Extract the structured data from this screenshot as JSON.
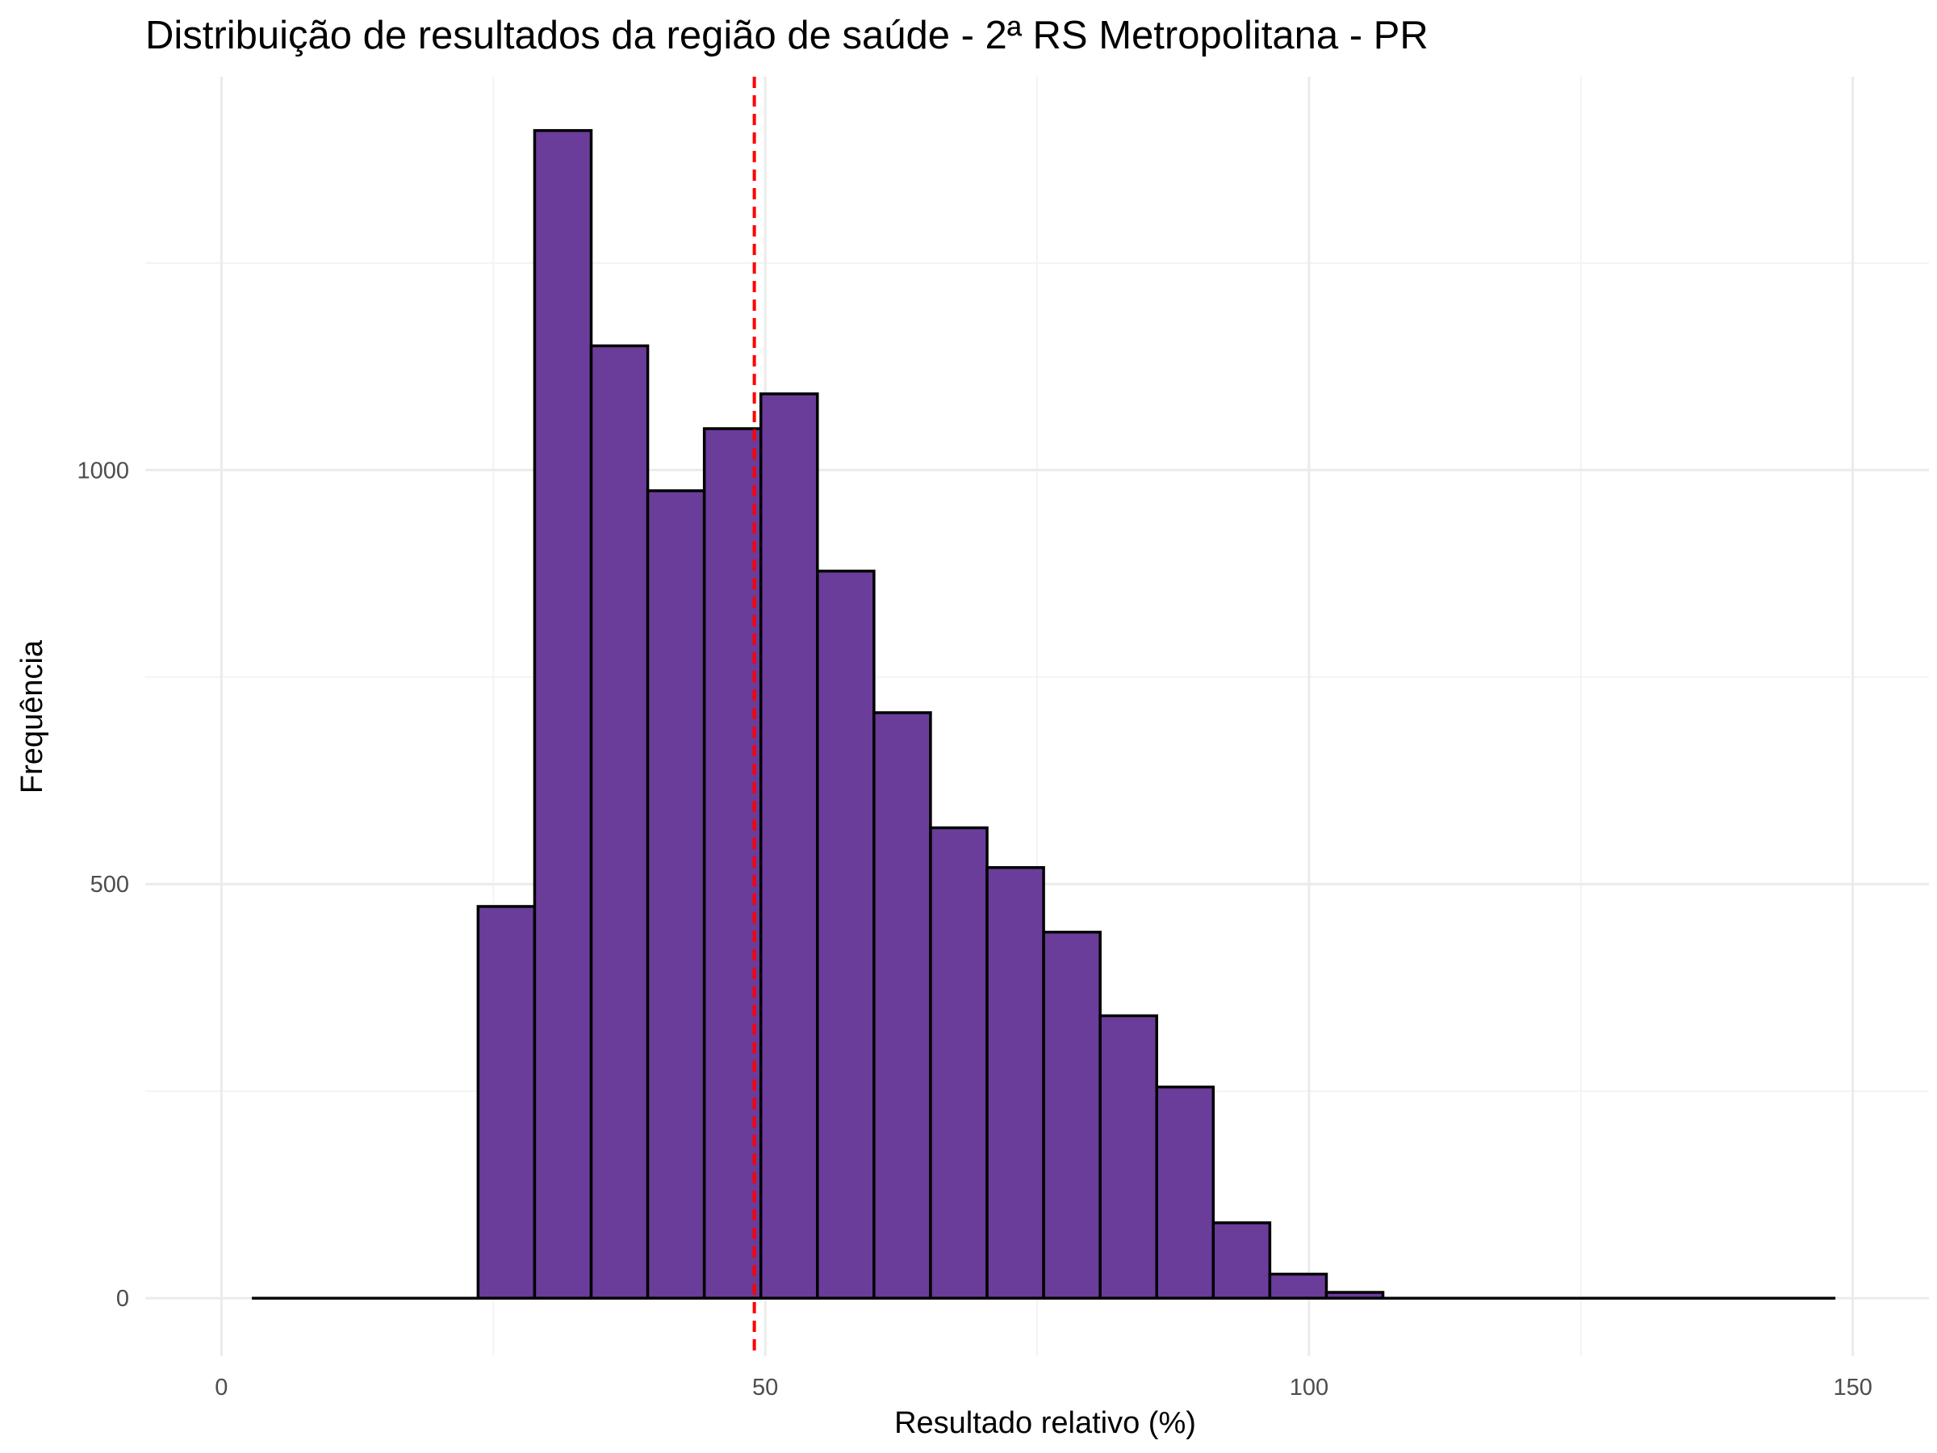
{
  "chart_data": {
    "type": "bar",
    "title": "Distribuição de resultados da região de saúde - 2ª RS Metropolitana - PR",
    "xlabel": "Resultado relativo (%)",
    "ylabel": "Frequência",
    "x_ticks": [
      0,
      50,
      100,
      150
    ],
    "y_ticks": [
      0,
      500,
      1000
    ],
    "xlim": [
      -7,
      157
    ],
    "ylim": [
      -70,
      1475
    ],
    "bin_width": 5.2,
    "bins": [
      {
        "x0": 2.8,
        "x1": 8.0,
        "count": 0
      },
      {
        "x0": 8.0,
        "x1": 13.2,
        "count": 0
      },
      {
        "x0": 13.2,
        "x1": 18.4,
        "count": 0
      },
      {
        "x0": 18.4,
        "x1": 23.6,
        "count": 0
      },
      {
        "x0": 23.6,
        "x1": 28.8,
        "count": 473
      },
      {
        "x0": 28.8,
        "x1": 34.0,
        "count": 1410
      },
      {
        "x0": 34.0,
        "x1": 39.2,
        "count": 1150
      },
      {
        "x0": 39.2,
        "x1": 44.4,
        "count": 975
      },
      {
        "x0": 44.4,
        "x1": 49.6,
        "count": 1050
      },
      {
        "x0": 49.6,
        "x1": 54.8,
        "count": 1092
      },
      {
        "x0": 54.8,
        "x1": 60.0,
        "count": 878
      },
      {
        "x0": 60.0,
        "x1": 65.2,
        "count": 707
      },
      {
        "x0": 65.2,
        "x1": 70.4,
        "count": 568
      },
      {
        "x0": 70.4,
        "x1": 75.6,
        "count": 520
      },
      {
        "x0": 75.6,
        "x1": 80.8,
        "count": 442
      },
      {
        "x0": 80.8,
        "x1": 86.0,
        "count": 341
      },
      {
        "x0": 86.0,
        "x1": 91.2,
        "count": 255
      },
      {
        "x0": 91.2,
        "x1": 96.4,
        "count": 91
      },
      {
        "x0": 96.4,
        "x1": 101.6,
        "count": 29
      },
      {
        "x0": 101.6,
        "x1": 106.8,
        "count": 7
      },
      {
        "x0": 106.8,
        "x1": 112.0,
        "count": 0
      },
      {
        "x0": 112.0,
        "x1": 117.2,
        "count": 0
      },
      {
        "x0": 117.2,
        "x1": 122.4,
        "count": 0
      },
      {
        "x0": 122.4,
        "x1": 127.6,
        "count": 0
      },
      {
        "x0": 127.6,
        "x1": 132.8,
        "count": 0
      },
      {
        "x0": 132.8,
        "x1": 138.0,
        "count": 0
      },
      {
        "x0": 138.0,
        "x1": 143.2,
        "count": 0
      },
      {
        "x0": 143.2,
        "x1": 148.4,
        "count": 0
      }
    ],
    "reference_line": {
      "x": 49,
      "style": "dashed"
    },
    "grid": true,
    "legend": "none"
  },
  "colors": {
    "bar_fill": "#6a3d9a",
    "bar_outline": "#000000",
    "reference_line": "#ff0000",
    "background": "#ffffff"
  }
}
